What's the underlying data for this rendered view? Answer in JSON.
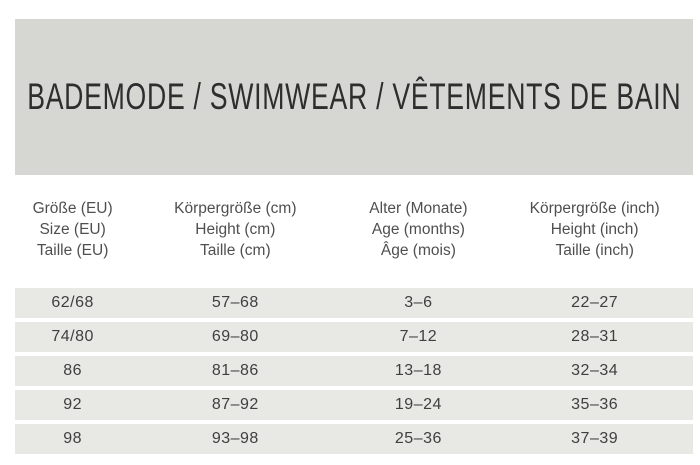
{
  "chart_data": {
    "type": "table",
    "title": "BADEMODE / SWIMWEAR / VÊTEMENTS DE BAIN",
    "columns": [
      [
        "Größe (EU)",
        "Size (EU)",
        "Taille (EU)"
      ],
      [
        "Körpergröße (cm)",
        "Height (cm)",
        "Taille (cm)"
      ],
      [
        "Alter (Monate)",
        "Age (months)",
        "Âge (mois)"
      ],
      [
        "Körpergröße (inch)",
        "Height (inch)",
        "Taille (inch)"
      ]
    ],
    "rows": [
      [
        "62/68",
        "57–68",
        "3–6",
        "22–27"
      ],
      [
        "74/80",
        "69–80",
        "7–12",
        "28–31"
      ],
      [
        "86",
        "81–86",
        "13–18",
        "32–34"
      ],
      [
        "92",
        "87–92",
        "19–24",
        "35–36"
      ],
      [
        "98",
        "93–98",
        "25–36",
        "37–39"
      ]
    ]
  },
  "colors": {
    "banner_background": "#d6d7d2",
    "row_background": "#e8e8e4",
    "title_text": "#2e2e2e",
    "header_text": "#4f4f4f",
    "cell_text": "#3f3f3f",
    "page_background": "#ffffff"
  }
}
